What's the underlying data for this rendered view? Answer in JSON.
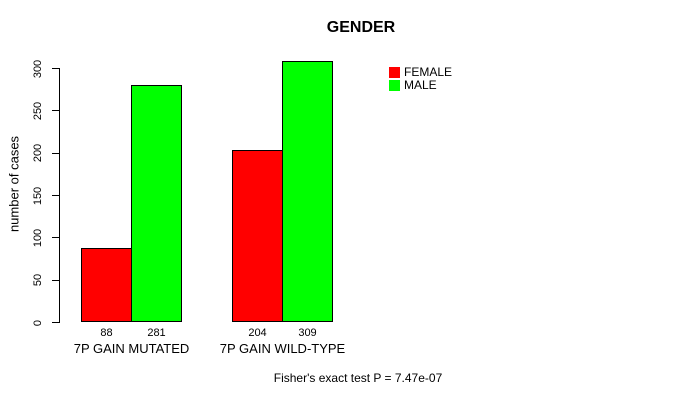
{
  "chart_data": {
    "type": "bar",
    "title": "GENDER",
    "ylabel": "number of cases",
    "xlabel": "",
    "ylim": [
      0,
      300
    ],
    "yticks": [
      0,
      50,
      100,
      150,
      200,
      250,
      300
    ],
    "grid": false,
    "legend_position": "top-right",
    "categories": [
      "7P GAIN MUTATED",
      "7P GAIN WILD-TYPE"
    ],
    "series": [
      {
        "name": "FEMALE",
        "color": "#ff0000",
        "values": [
          88,
          204
        ]
      },
      {
        "name": "MALE",
        "color": "#00ff00",
        "values": [
          281,
          309
        ]
      }
    ],
    "bar_value_labels": [
      [
        "88",
        "204"
      ],
      [
        "281",
        "309"
      ]
    ],
    "bar_border_color": "#000000",
    "annotation": "Fisher's exact test P = 7.47e-07"
  }
}
